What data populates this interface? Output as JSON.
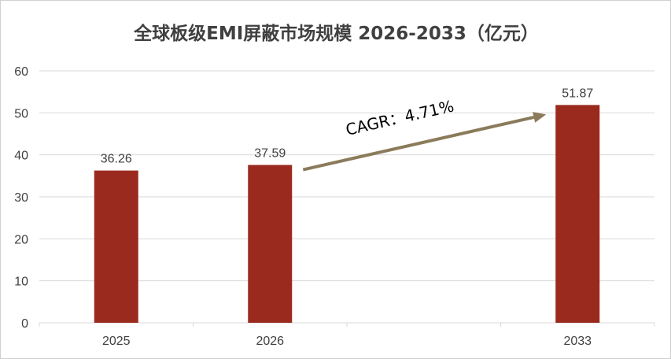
{
  "chart_data": {
    "type": "bar",
    "title": "全球板级EMI屏蔽市场规模 2026-2033（亿元）",
    "categories": [
      "2025",
      "2026",
      "",
      "2033"
    ],
    "values": [
      36.26,
      37.59,
      null,
      51.87
    ],
    "data_labels": [
      "36.26",
      "37.59",
      "",
      "51.87"
    ],
    "y_ticks": [
      "0",
      "10",
      "20",
      "30",
      "40",
      "50",
      "60"
    ],
    "ylim": [
      0,
      60
    ],
    "xlabel": "",
    "ylabel": "",
    "grid": true,
    "legend": "none",
    "colors": {
      "bar": "#9b2a1e",
      "arrow": "#8b7b5a",
      "grid": "#d9d9d9",
      "text": "#404040"
    },
    "annotation": {
      "text": "CAGR：4.71%",
      "from_category": "2026",
      "to_category": "2033"
    }
  }
}
